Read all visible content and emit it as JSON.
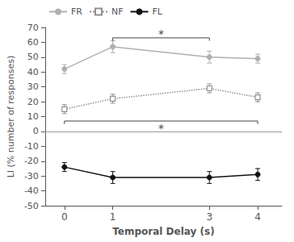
{
  "chart_data": {
    "type": "line",
    "x": [
      0,
      1,
      3,
      4
    ],
    "xlabel": "Temporal Delay (s)",
    "ylabel": "LI (% number of responses)",
    "xlim": [
      -0.4,
      4.5
    ],
    "xticks": [
      0,
      1,
      3,
      4
    ],
    "ylim": [
      -50,
      70
    ],
    "yticks": [
      -50,
      -40,
      -30,
      -20,
      -10,
      0,
      10,
      20,
      30,
      40,
      50,
      60,
      70
    ],
    "grid": false,
    "legend": "upper left",
    "series": [
      {
        "name": "FR",
        "color": "#b0b0b0",
        "marker": "circle",
        "line_style": "solid",
        "values": [
          42,
          57,
          50,
          49
        ],
        "errors": [
          3,
          4,
          4,
          3
        ]
      },
      {
        "name": "NF",
        "color": "#909090",
        "marker": "open_square",
        "line_style": "dotted",
        "values": [
          15,
          22,
          29,
          23
        ],
        "errors": [
          3,
          3,
          3,
          3
        ]
      },
      {
        "name": "FL",
        "color": "#111111",
        "marker": "circle",
        "line_style": "solid",
        "values": [
          -24,
          -31,
          -31,
          -29
        ],
        "errors": [
          3,
          4,
          4,
          4
        ]
      }
    ],
    "hlines": [
      {
        "value": 0,
        "color": "#999999"
      }
    ],
    "annotations": [
      {
        "text": "*",
        "x1": 1,
        "x2": 3,
        "y": 63,
        "text_side": "above",
        "color": "#444444"
      },
      {
        "text": "*",
        "x1": 0,
        "x2": 4,
        "y": 7,
        "text_side": "below",
        "color": "#444444"
      }
    ]
  }
}
